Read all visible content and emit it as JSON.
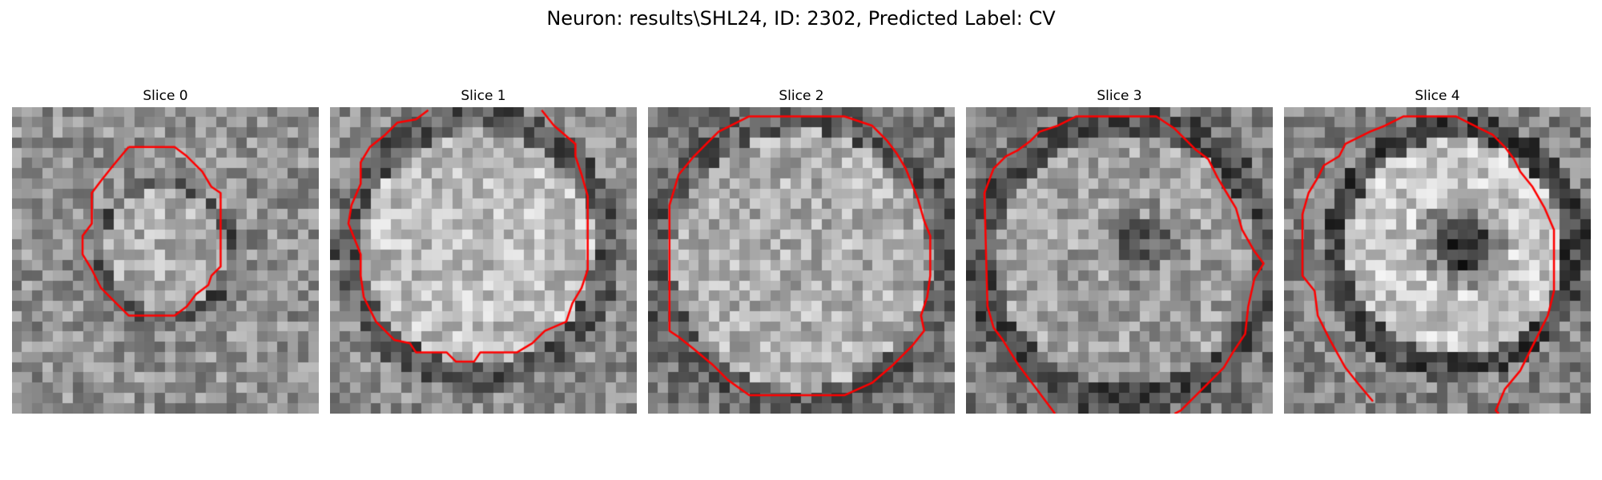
{
  "figure": {
    "title": "Neuron: results\\SHL24, ID: 2302, Predicted Label: CV"
  },
  "contour_color": "#ff0000",
  "panels": [
    {
      "title": "Slice 0"
    },
    {
      "title": "Slice 1"
    },
    {
      "title": "Slice 2"
    },
    {
      "title": "Slice 3"
    },
    {
      "title": "Slice 4"
    }
  ]
}
